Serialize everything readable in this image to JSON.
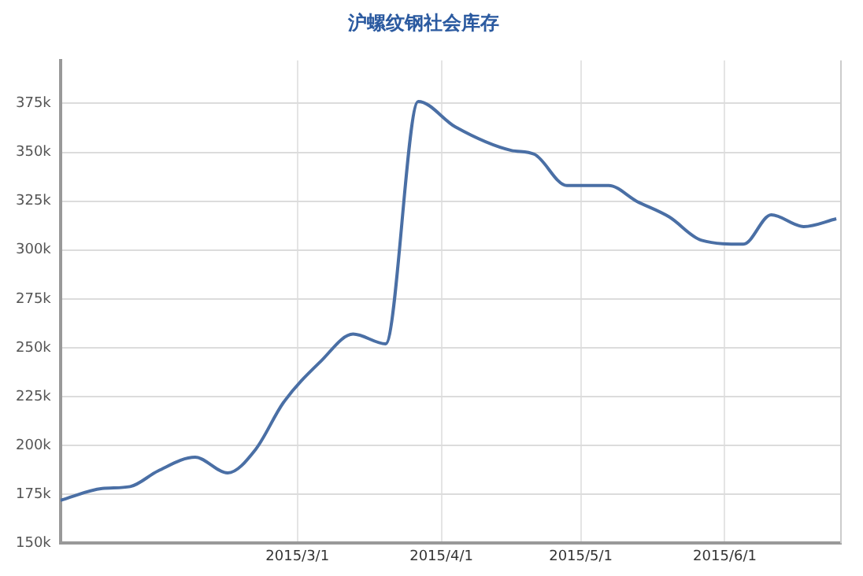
{
  "chart_data": {
    "type": "line",
    "title": "沪螺纹钢社会库存",
    "x": [
      "2015-01-09",
      "2015-01-18",
      "2015-01-24",
      "2015-01-30",
      "2015-02-07",
      "2015-02-14",
      "2015-02-20",
      "2015-02-26",
      "2015-03-06",
      "2015-03-13",
      "2015-03-20",
      "2015-03-27",
      "2015-04-04",
      "2015-04-16",
      "2015-04-21",
      "2015-04-28",
      "2015-05-07",
      "2015-05-13",
      "2015-05-20",
      "2015-05-27",
      "2015-06-05",
      "2015-06-11",
      "2015-06-18",
      "2015-06-25"
    ],
    "series": [
      {
        "color": "#4a6fa5",
        "values": [
          172,
          178,
          179,
          187,
          194,
          186,
          198,
          222,
          243,
          257,
          252,
          376,
          363,
          351,
          349,
          333,
          333,
          325,
          317,
          305,
          303,
          318,
          312,
          316
        ]
      }
    ],
    "xlim": [
      "2015-01-09",
      "2015-06-26"
    ],
    "xticks": [
      {
        "value": "2015-03-01",
        "label": "2015/3/1"
      },
      {
        "value": "2015-04-01",
        "label": "2015/4/1"
      },
      {
        "value": "2015-05-01",
        "label": "2015/5/1"
      },
      {
        "value": "2015-06-01",
        "label": "2015/6/1"
      }
    ],
    "ylim": [
      150,
      397
    ],
    "yticks": [
      {
        "value": 150,
        "label": "150k"
      },
      {
        "value": 175,
        "label": "175k"
      },
      {
        "value": 200,
        "label": "200k"
      },
      {
        "value": 225,
        "label": "225k"
      },
      {
        "value": 250,
        "label": "250k"
      },
      {
        "value": 275,
        "label": "275k"
      },
      {
        "value": 300,
        "label": "300k"
      },
      {
        "value": 325,
        "label": "325k"
      },
      {
        "value": 350,
        "label": "350k"
      },
      {
        "value": 375,
        "label": "375k"
      }
    ],
    "grid": true,
    "legend": false,
    "marker": "none",
    "line_style": "solid"
  }
}
